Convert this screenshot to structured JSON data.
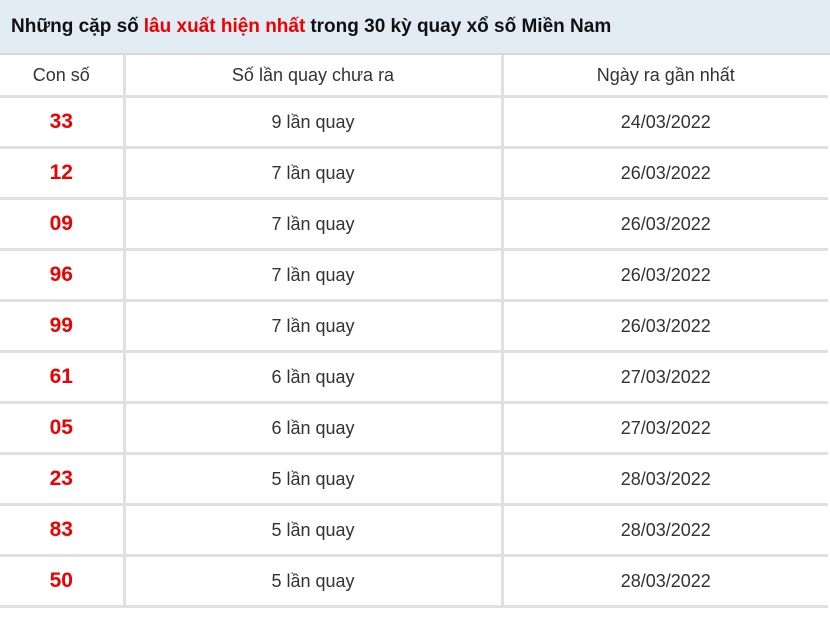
{
  "title": {
    "prefix": "Những cặp số",
    "highlight": "lâu xuất hiện nhất",
    "suffix": "trong 30 kỳ quay xổ số Miền Nam"
  },
  "colors": {
    "highlight": "#ee0000",
    "header_bg": "#e2ecf4"
  },
  "columns": [
    "Con số",
    "Số lần quay chưa ra",
    "Ngày ra gần nhất"
  ],
  "rows": [
    {
      "number": "33",
      "count": "9 lần quay",
      "date": "24/03/2022"
    },
    {
      "number": "12",
      "count": "7 lần quay",
      "date": "26/03/2022"
    },
    {
      "number": "09",
      "count": "7 lần quay",
      "date": "26/03/2022"
    },
    {
      "number": "96",
      "count": "7 lần quay",
      "date": "26/03/2022"
    },
    {
      "number": "99",
      "count": "7 lần quay",
      "date": "26/03/2022"
    },
    {
      "number": "61",
      "count": "6 lần quay",
      "date": "27/03/2022"
    },
    {
      "number": "05",
      "count": "6 lần quay",
      "date": "27/03/2022"
    },
    {
      "number": "23",
      "count": "5 lần quay",
      "date": "28/03/2022"
    },
    {
      "number": "83",
      "count": "5 lần quay",
      "date": "28/03/2022"
    },
    {
      "number": "50",
      "count": "5 lần quay",
      "date": "28/03/2022"
    }
  ]
}
